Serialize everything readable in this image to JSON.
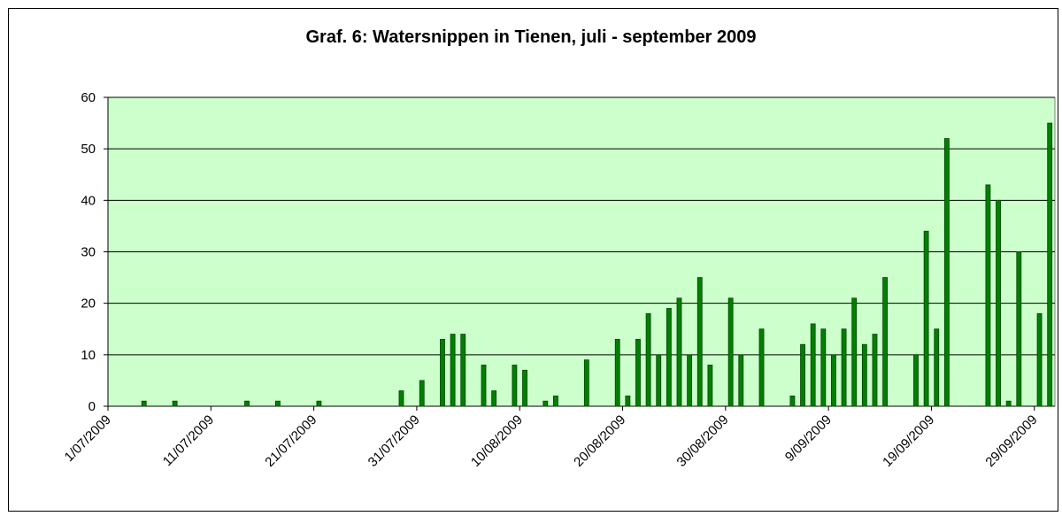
{
  "chart_data": {
    "type": "bar",
    "title": "Graf. 6: Watersnippen in Tienen, juli - september 2009",
    "categories": [
      "1/07/2009",
      null,
      null,
      null,
      null,
      null,
      null,
      null,
      null,
      null,
      "11/07/2009",
      null,
      null,
      null,
      null,
      null,
      null,
      null,
      null,
      null,
      "21/07/2009",
      null,
      null,
      null,
      null,
      null,
      null,
      null,
      null,
      null,
      "31/07/2009",
      null,
      null,
      null,
      null,
      null,
      null,
      null,
      null,
      null,
      "10/08/2009",
      null,
      null,
      null,
      null,
      null,
      null,
      null,
      null,
      null,
      "20/08/2009",
      null,
      null,
      null,
      null,
      null,
      null,
      null,
      null,
      null,
      "30/08/2009",
      null,
      null,
      null,
      null,
      null,
      null,
      null,
      null,
      null,
      "9/09/2009",
      null,
      null,
      null,
      null,
      null,
      null,
      null,
      null,
      null,
      "19/09/2009",
      null,
      null,
      null,
      null,
      null,
      null,
      null,
      null,
      null,
      "29/09/2009",
      null
    ],
    "values": [
      null,
      null,
      null,
      1,
      null,
      null,
      1,
      null,
      null,
      null,
      null,
      null,
      null,
      1,
      null,
      null,
      1,
      null,
      null,
      null,
      1,
      null,
      null,
      null,
      null,
      null,
      null,
      null,
      3,
      null,
      5,
      null,
      13,
      14,
      14,
      null,
      8,
      3,
      null,
      8,
      7,
      null,
      1,
      2,
      null,
      null,
      9,
      null,
      null,
      13,
      2,
      13,
      18,
      10,
      19,
      21,
      10,
      25,
      8,
      null,
      21,
      10,
      null,
      15,
      null,
      null,
      2,
      12,
      16,
      15,
      10,
      15,
      21,
      12,
      14,
      25,
      null,
      null,
      10,
      34,
      15,
      52,
      null,
      null,
      null,
      43,
      40,
      1,
      30,
      null,
      18,
      55
    ],
    "color": "#008000",
    "background": "#ccffcc",
    "ylim": [
      0,
      60
    ],
    "yticks": [
      0,
      10,
      20,
      30,
      40,
      50,
      60
    ],
    "grid": true
  }
}
